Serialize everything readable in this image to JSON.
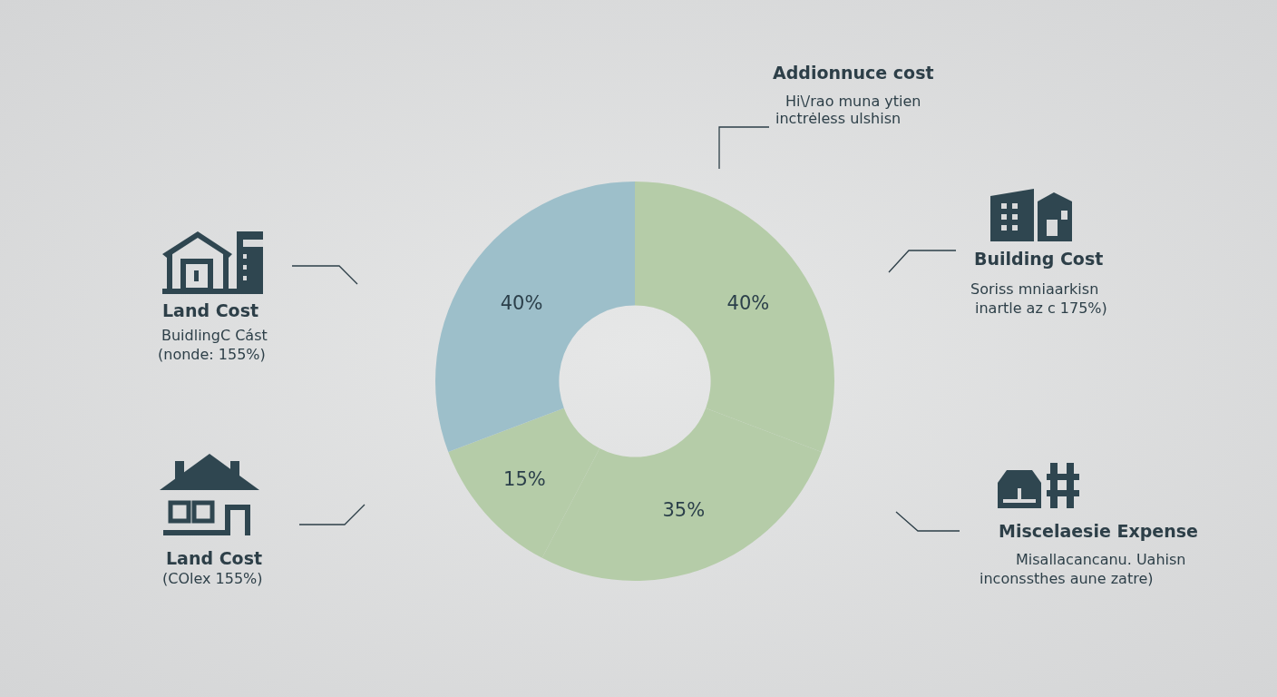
{
  "chart_data": {
    "type": "donut",
    "categories": [
      null,
      null,
      null,
      null
    ],
    "values": [
      40,
      35,
      15,
      40
    ],
    "value_labels": [
      "40%",
      "35%",
      "15%",
      "40%"
    ],
    "colors": [
      "#b5cca8",
      "#b5cca8",
      "#b5cca8",
      "#9dbfca"
    ],
    "legend": false,
    "annotations": [
      "Addionnuce cost",
      "Hi\\/rao muna ytien",
      "inctrėless ulshisn",
      "Building Cost",
      "Soriss mniaarkisn",
      "inartle az c 175%)",
      "Land Cost",
      "BuidlingC Cást",
      "(nonde: 155%)",
      "Land Cost",
      "(COlex 155%)",
      "Miscelaesie Expense",
      "Misallacancanu. Uahisn",
      "inconssthes aune zatre)"
    ]
  }
}
